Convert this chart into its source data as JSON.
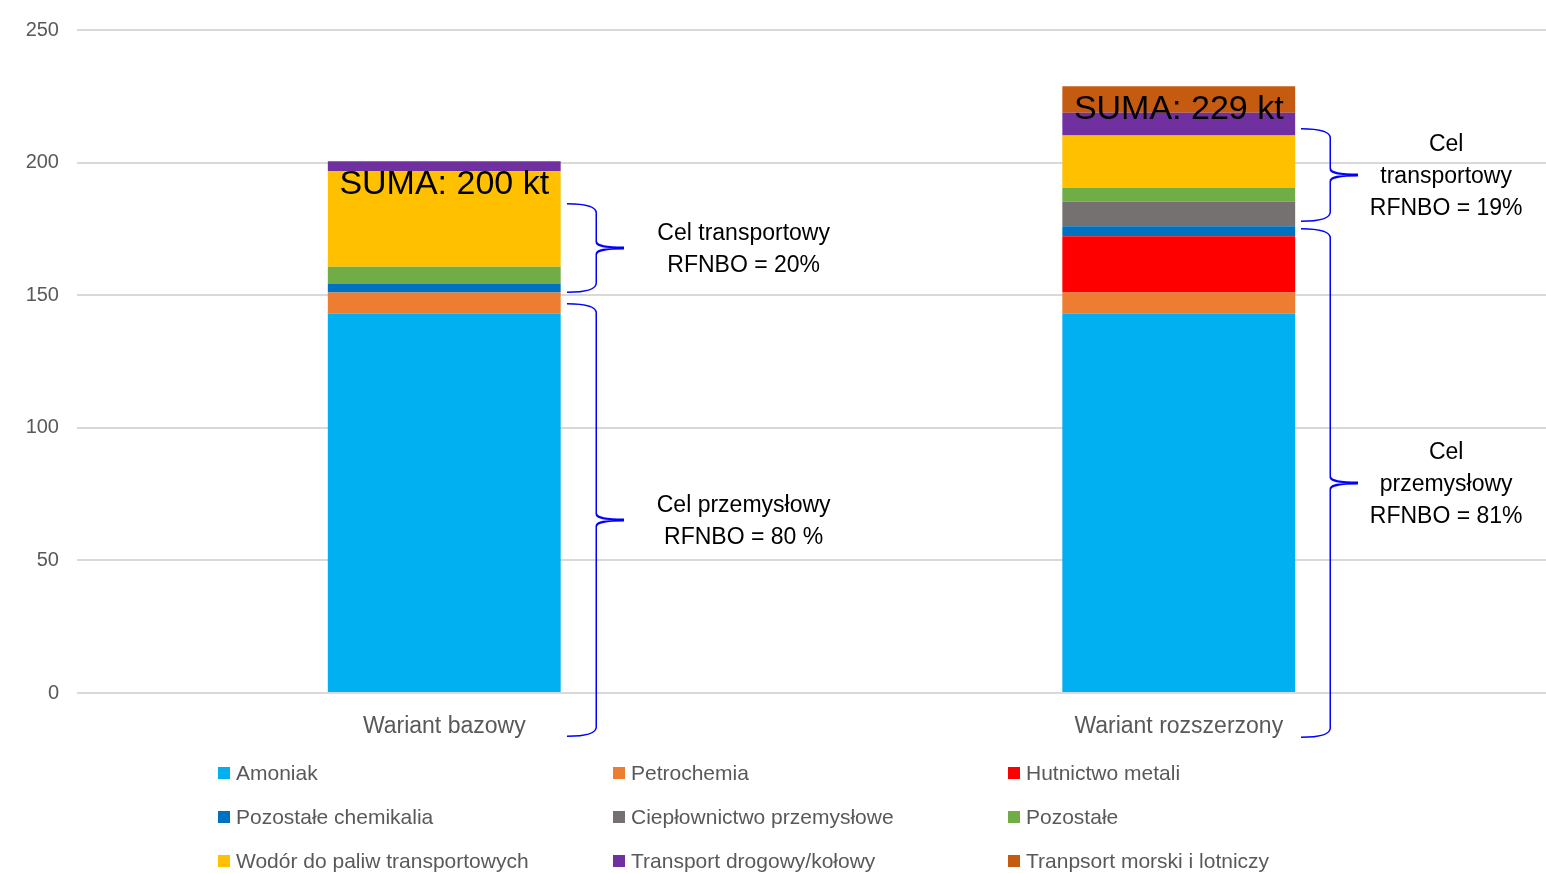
{
  "chart_data": {
    "type": "bar",
    "stacked": true,
    "categories": [
      "Wariant bazowy",
      "Wariant rozszerzony"
    ],
    "series": [
      {
        "name": "Amoniak",
        "color": "#00b0f0",
        "values": [
          143,
          143
        ]
      },
      {
        "name": "Petrochemia",
        "color": "#ed7d31",
        "values": [
          8,
          8
        ]
      },
      {
        "name": "Hutnictwo metali",
        "color": "#ff0000",
        "values": [
          0,
          21.2
        ]
      },
      {
        "name": "Pozostałe chemikalia",
        "color": "#0070c0",
        "values": [
          3.4,
          3.8
        ]
      },
      {
        "name": "Ciepłownictwo przemysłowe",
        "color": "#767171",
        "values": [
          0,
          9.3
        ]
      },
      {
        "name": "Pozostałe",
        "color": "#70ad47",
        "values": [
          6.3,
          5.2
        ]
      },
      {
        "name": "Wodór do paliw transportowych",
        "color": "#ffc000",
        "values": [
          36.1,
          19.7
        ]
      },
      {
        "name": "Transport drogowy/kołowy",
        "color": "#7030a0",
        "values": [
          3.7,
          8.6
        ]
      },
      {
        "name": "Tranpsort morski i lotniczy",
        "color": "#c55a11",
        "values": [
          0,
          10
        ]
      }
    ],
    "ylim": [
      0,
      250
    ],
    "yticks": [
      0,
      50,
      100,
      150,
      200,
      250
    ],
    "grid": "y",
    "legend": "bottom",
    "totals": [
      "SUMA: 200 kt",
      "SUMA: 229 kt"
    ],
    "annotations": [
      "Cel transportowy\nRFNBO = 20%",
      "Cel przemysłowy\nRFNBO = 80 %",
      "Cel\ntransportowy\nRFNBO = 19%",
      "Cel\nprzemysłowy\nRFNBO = 81%"
    ]
  }
}
